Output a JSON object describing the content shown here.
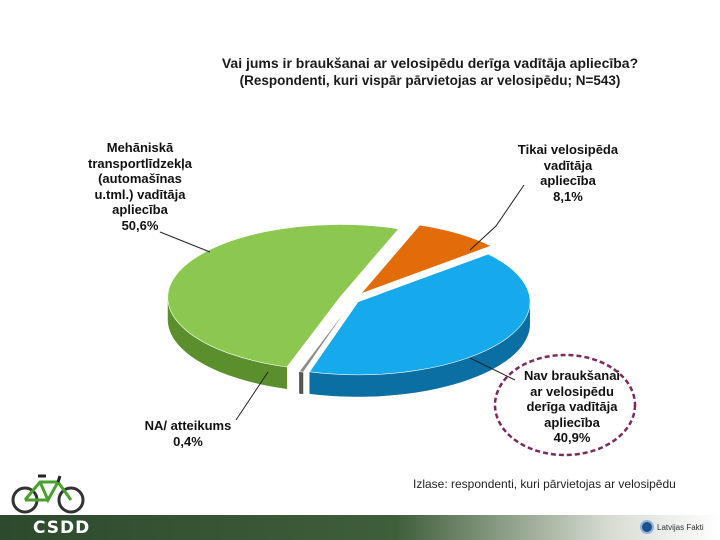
{
  "chart_data": {
    "type": "pie",
    "title": "Vai jums ir braukšanai ar velosipēdu derīga vadītāja apliecība?",
    "subtitle": "(Respondenti, kuri vispār pārvietojas ar velosipēdu; N=543)",
    "slices": [
      {
        "label": [
          "Tikai velosipēda",
          "vadītāja",
          "apliecība"
        ],
        "value": 8.1,
        "value_label": "8,1%",
        "color": "#e36c0a",
        "dark": "#9a4303"
      },
      {
        "label": [
          "Nav braukšanai",
          "ar velosipēdu",
          "derīga vadītāja",
          "apliecība"
        ],
        "value": 40.9,
        "value_label": "40,9%",
        "color": "#16a9ec",
        "dark": "#0b6fa3",
        "highlighted": true
      },
      {
        "label": [
          "NA/ atteikums"
        ],
        "value": 0.4,
        "value_label": "0,4%",
        "color": "#8c8c8c",
        "dark": "#555555"
      },
      {
        "label": [
          "Mehāniskā",
          "transportlīdzekļa",
          "(automašīnas",
          "u.tml.) vadītāja",
          "apliecība"
        ],
        "value": 50.6,
        "value_label": "50,6%",
        "color": "#8cc850",
        "dark": "#5b8f2c"
      }
    ]
  },
  "note": "Izlase: respondenti, kuri pārvietojas ar velosipēdu",
  "footer": {
    "brand": "CSDD",
    "partner": "Latvijas Fakti"
  },
  "icons": [
    "bicycle-icon",
    "partner-logo-icon"
  ]
}
